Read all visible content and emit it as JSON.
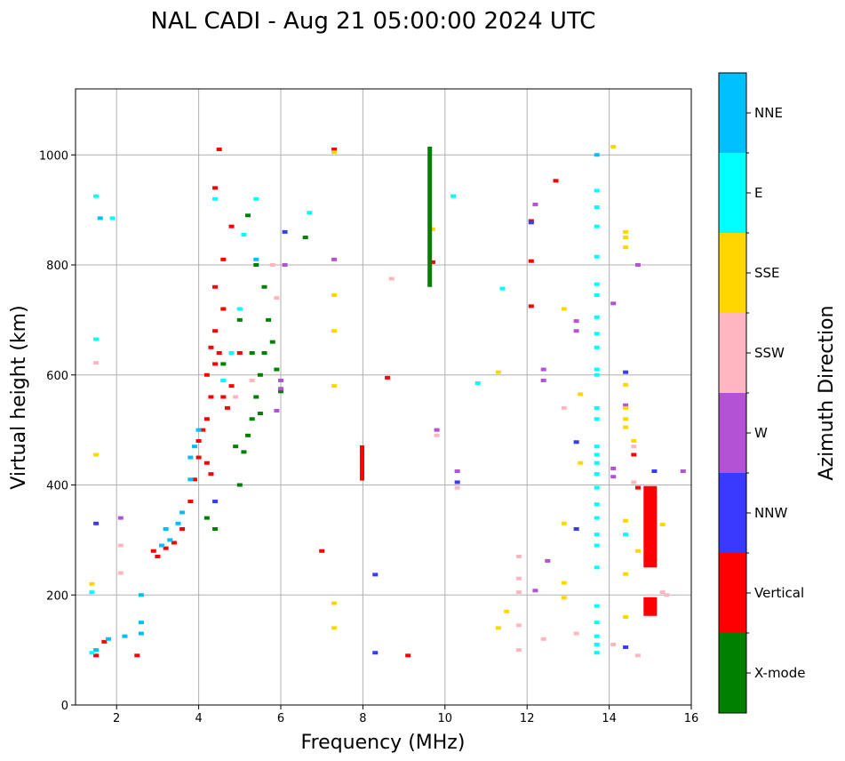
{
  "chart_data": {
    "type": "scatter",
    "title": "NAL CADI - Aug 21 05:00:00 2024 UTC",
    "xlabel": "Frequency (MHz)",
    "ylabel": "Virtual height (km)",
    "xlim": [
      1,
      16
    ],
    "ylim": [
      0,
      1120
    ],
    "xticks": [
      "2",
      "4",
      "6",
      "8",
      "10",
      "12",
      "14",
      "16"
    ],
    "yticks": [
      "0",
      "200",
      "400",
      "600",
      "800",
      "1000"
    ],
    "grid": true,
    "colorbar": {
      "label": "Azimuth Direction",
      "categories": [
        {
          "name": "X-mode",
          "color": "#008000"
        },
        {
          "name": "Vertical",
          "color": "#ff0000"
        },
        {
          "name": "NNW",
          "color": "#3a3aff"
        },
        {
          "name": "W",
          "color": "#b452d6"
        },
        {
          "name": "SSW",
          "color": "#ffb6c1"
        },
        {
          "name": "SSE",
          "color": "#ffd700"
        },
        {
          "name": "E",
          "color": "#00ffff"
        },
        {
          "name": "NNE",
          "color": "#00bfff"
        }
      ]
    },
    "series": [
      {
        "name": "Vertical",
        "points": [
          [
            1.5,
            90
          ],
          [
            1.7,
            115
          ],
          [
            2.5,
            90
          ],
          [
            2.9,
            280
          ],
          [
            3.0,
            270
          ],
          [
            3.2,
            285
          ],
          [
            3.4,
            295
          ],
          [
            3.6,
            320
          ],
          [
            3.8,
            370
          ],
          [
            3.9,
            410
          ],
          [
            4.0,
            450
          ],
          [
            4.1,
            500
          ],
          [
            4.2,
            520
          ],
          [
            4.3,
            560
          ],
          [
            4.4,
            620
          ],
          [
            4.4,
            680
          ],
          [
            4.5,
            640
          ],
          [
            4.6,
            720
          ],
          [
            4.4,
            760
          ],
          [
            4.6,
            810
          ],
          [
            4.8,
            870
          ],
          [
            4.4,
            940
          ],
          [
            4.5,
            1010
          ],
          [
            4.0,
            480
          ],
          [
            4.2,
            440
          ],
          [
            4.3,
            420
          ],
          [
            4.6,
            560
          ],
          [
            4.8,
            580
          ],
          [
            5.0,
            640
          ],
          [
            4.7,
            540
          ],
          [
            4.2,
            600
          ],
          [
            4.3,
            650
          ],
          [
            7.0,
            280
          ],
          [
            7.3,
            1010
          ],
          [
            8.6,
            595
          ],
          [
            9.1,
            90
          ],
          [
            9.7,
            805
          ],
          [
            12.1,
            725
          ],
          [
            12.1,
            880
          ],
          [
            12.1,
            807
          ],
          [
            12.7,
            953
          ],
          [
            14.6,
            455
          ],
          [
            14.7,
            395
          ]
        ]
      },
      {
        "name": "X-mode",
        "points": [
          [
            4.2,
            340
          ],
          [
            4.4,
            320
          ],
          [
            5.0,
            400
          ],
          [
            4.9,
            470
          ],
          [
            5.1,
            460
          ],
          [
            5.2,
            490
          ],
          [
            5.3,
            520
          ],
          [
            5.4,
            560
          ],
          [
            5.5,
            600
          ],
          [
            5.6,
            640
          ],
          [
            5.7,
            700
          ],
          [
            5.3,
            640
          ],
          [
            5.8,
            660
          ],
          [
            5.9,
            610
          ],
          [
            6.0,
            570
          ],
          [
            5.5,
            530
          ],
          [
            5.2,
            890
          ],
          [
            5.4,
            800
          ],
          [
            6.6,
            850
          ],
          [
            4.6,
            620
          ],
          [
            5.0,
            700
          ],
          [
            5.6,
            760
          ]
        ]
      },
      {
        "name": "NNE",
        "points": [
          [
            1.5,
            100
          ],
          [
            1.8,
            120
          ],
          [
            2.2,
            125
          ],
          [
            2.6,
            130
          ],
          [
            2.6,
            150
          ],
          [
            2.6,
            200
          ],
          [
            3.3,
            300
          ],
          [
            3.5,
            330
          ],
          [
            3.6,
            350
          ],
          [
            3.8,
            410
          ],
          [
            3.8,
            450
          ],
          [
            3.9,
            470
          ],
          [
            4.0,
            500
          ],
          [
            4.6,
            590
          ],
          [
            5.4,
            810
          ],
          [
            3.1,
            290
          ],
          [
            3.2,
            320
          ],
          [
            1.6,
            885
          ],
          [
            13.7,
            1000
          ]
        ]
      },
      {
        "name": "E",
        "points": [
          [
            1.4,
            95
          ],
          [
            1.4,
            205
          ],
          [
            1.5,
            665
          ],
          [
            1.5,
            925
          ],
          [
            1.9,
            885
          ],
          [
            4.4,
            920
          ],
          [
            4.6,
            590
          ],
          [
            4.8,
            640
          ],
          [
            5.0,
            720
          ],
          [
            5.1,
            855
          ],
          [
            5.4,
            920
          ],
          [
            6.7,
            895
          ],
          [
            10.2,
            925
          ],
          [
            10.8,
            585
          ],
          [
            11.4,
            757
          ],
          [
            13.7,
            935
          ],
          [
            13.7,
            905
          ],
          [
            13.7,
            870
          ],
          [
            13.7,
            815
          ],
          [
            13.7,
            765
          ],
          [
            13.7,
            745
          ],
          [
            13.7,
            705
          ],
          [
            13.7,
            675
          ],
          [
            13.7,
            650
          ],
          [
            13.7,
            610
          ],
          [
            13.7,
            600
          ],
          [
            13.7,
            540
          ],
          [
            13.7,
            520
          ],
          [
            13.7,
            470
          ],
          [
            13.7,
            455
          ],
          [
            13.7,
            440
          ],
          [
            13.7,
            420
          ],
          [
            13.7,
            395
          ],
          [
            13.7,
            365
          ],
          [
            13.7,
            340
          ],
          [
            13.7,
            310
          ],
          [
            13.7,
            290
          ],
          [
            13.7,
            250
          ],
          [
            13.7,
            180
          ],
          [
            13.7,
            150
          ],
          [
            13.7,
            125
          ],
          [
            13.7,
            110
          ],
          [
            13.7,
            95
          ],
          [
            14.4,
            310
          ]
        ]
      },
      {
        "name": "NNW",
        "points": [
          [
            1.5,
            330
          ],
          [
            4.4,
            370
          ],
          [
            6.1,
            860
          ],
          [
            8.3,
            237
          ],
          [
            8.3,
            95
          ],
          [
            10.3,
            405
          ],
          [
            12.1,
            877
          ],
          [
            13.2,
            478
          ],
          [
            13.2,
            320
          ],
          [
            14.4,
            605
          ],
          [
            14.4,
            105
          ],
          [
            15.1,
            425
          ]
        ]
      },
      {
        "name": "W",
        "points": [
          [
            2.1,
            340
          ],
          [
            5.9,
            535
          ],
          [
            6.0,
            575
          ],
          [
            6.0,
            590
          ],
          [
            6.1,
            800
          ],
          [
            7.3,
            810
          ],
          [
            9.8,
            500
          ],
          [
            10.3,
            425
          ],
          [
            12.2,
            910
          ],
          [
            12.4,
            610
          ],
          [
            12.4,
            590
          ],
          [
            12.5,
            262
          ],
          [
            13.2,
            698
          ],
          [
            13.2,
            680
          ],
          [
            14.1,
            730
          ],
          [
            14.1,
            430
          ],
          [
            14.1,
            415
          ],
          [
            14.4,
            545
          ],
          [
            14.7,
            800
          ],
          [
            15.8,
            425
          ],
          [
            12.2,
            208
          ]
        ]
      },
      {
        "name": "SSW",
        "points": [
          [
            1.5,
            622
          ],
          [
            2.1,
            290
          ],
          [
            2.1,
            240
          ],
          [
            4.9,
            560
          ],
          [
            5.3,
            590
          ],
          [
            5.9,
            740
          ],
          [
            5.8,
            800
          ],
          [
            8.7,
            775
          ],
          [
            9.8,
            490
          ],
          [
            10.3,
            395
          ],
          [
            11.8,
            230
          ],
          [
            11.8,
            270
          ],
          [
            11.8,
            205
          ],
          [
            11.8,
            145
          ],
          [
            11.8,
            100
          ],
          [
            12.4,
            120
          ],
          [
            12.9,
            540
          ],
          [
            13.2,
            130
          ],
          [
            14.1,
            110
          ],
          [
            14.6,
            470
          ],
          [
            14.6,
            405
          ],
          [
            14.7,
            90
          ],
          [
            15.3,
            205
          ],
          [
            15.4,
            200
          ]
        ]
      },
      {
        "name": "SSE",
        "points": [
          [
            1.5,
            455
          ],
          [
            1.4,
            220
          ],
          [
            7.3,
            745
          ],
          [
            7.3,
            680
          ],
          [
            7.3,
            580
          ],
          [
            7.3,
            185
          ],
          [
            7.3,
            140
          ],
          [
            7.3,
            1005
          ],
          [
            9.7,
            865
          ],
          [
            11.3,
            140
          ],
          [
            11.5,
            170
          ],
          [
            11.3,
            605
          ],
          [
            12.9,
            720
          ],
          [
            12.9,
            330
          ],
          [
            12.9,
            222
          ],
          [
            12.9,
            195
          ],
          [
            13.3,
            565
          ],
          [
            13.3,
            440
          ],
          [
            14.1,
            1015
          ],
          [
            14.4,
            860
          ],
          [
            14.4,
            850
          ],
          [
            14.4,
            832
          ],
          [
            14.4,
            582
          ],
          [
            14.4,
            540
          ],
          [
            14.4,
            520
          ],
          [
            14.4,
            505
          ],
          [
            14.4,
            335
          ],
          [
            14.4,
            238
          ],
          [
            14.4,
            160
          ],
          [
            14.6,
            480
          ],
          [
            14.7,
            280
          ],
          [
            15.3,
            328
          ]
        ]
      }
    ],
    "bars": [
      {
        "name": "Vertical",
        "x": 15.0,
        "y_from": 250,
        "y_to": 398
      },
      {
        "name": "Vertical",
        "x": 15.0,
        "y_from": 162,
        "y_to": 196
      },
      {
        "name": "Vertical",
        "x": 7.98,
        "y_from": 408,
        "y_to": 472
      },
      {
        "name": "X-mode",
        "x": 9.63,
        "y_from": 760,
        "y_to": 1015
      }
    ]
  }
}
